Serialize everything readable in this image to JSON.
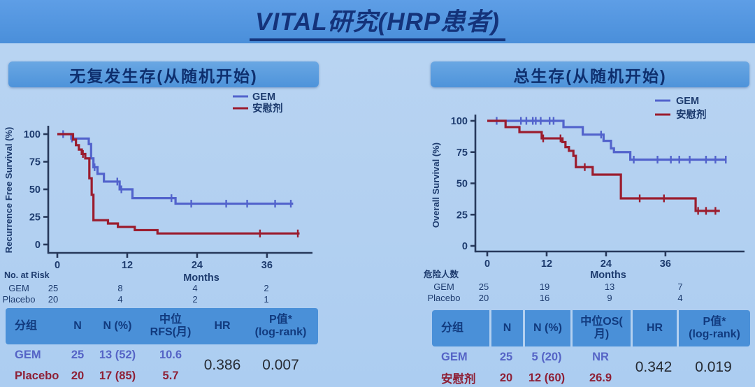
{
  "page": {
    "title": "VITAL研究(HRP患者)"
  },
  "left": {
    "panel_title": "无复发生存(从随机开始)",
    "risk": {
      "label": "No. at Risk",
      "months_label": "Months",
      "rows": [
        {
          "name": "GEM",
          "values": [
            "25",
            "8",
            "4",
            "2"
          ]
        },
        {
          "name": "Placebo",
          "values": [
            "20",
            "4",
            "2",
            "1"
          ]
        }
      ]
    },
    "table": {
      "headers": [
        "分组",
        "N",
        "N (%)",
        "中位\nRFS(月)",
        "HR",
        "P值*\n(log-rank)"
      ],
      "rows": [
        {
          "group": "GEM",
          "n": "25",
          "n_pct": "13 (52)",
          "median": "10.6"
        },
        {
          "group": "Placebo",
          "n": "20",
          "n_pct": "17 (85)",
          "median": "5.7"
        }
      ],
      "hr": "0.386",
      "p": "0.007"
    }
  },
  "right": {
    "panel_title": "总生存(从随机开始)",
    "risk": {
      "label": "危险人数",
      "months_label": "Months",
      "rows": [
        {
          "name": "GEM",
          "values": [
            "25",
            "19",
            "13",
            "7"
          ]
        },
        {
          "name": "Placebo",
          "values": [
            "20",
            "16",
            "9",
            "4"
          ]
        }
      ]
    },
    "table": {
      "headers": [
        "分组",
        "N",
        "N (%)",
        "中位OS(\n月)",
        "HR",
        "P值*\n(log-rank)"
      ],
      "rows": [
        {
          "group": "GEM",
          "n": "25",
          "n_pct": "5 (20)",
          "median": "NR"
        },
        {
          "group": "安慰剂",
          "n": "20",
          "n_pct": "12 (60)",
          "median": "26.9"
        }
      ],
      "hr": "0.342",
      "p": "0.019"
    }
  },
  "chart_data": [
    {
      "type": "line",
      "subtype": "kaplan-meier-step",
      "title": "无复发生存(从随机开始)",
      "xlabel": "Months",
      "ylabel": "Recurrence Free Survival (%)",
      "xticks": [
        0,
        12,
        24,
        36
      ],
      "yticks": [
        100,
        75,
        50,
        25,
        0
      ],
      "xlim": [
        0,
        44
      ],
      "ylim": [
        0,
        100
      ],
      "grid": false,
      "legend_position": "top-right",
      "series": [
        {
          "name": "GEM",
          "color": "#5263cc",
          "points": [
            [
              0,
              100
            ],
            [
              2.4,
              96
            ],
            [
              5.4,
              91
            ],
            [
              5.8,
              78
            ],
            [
              6.2,
              70
            ],
            [
              6.9,
              64
            ],
            [
              8.0,
              57
            ],
            [
              10.7,
              50
            ],
            [
              12.9,
              42
            ],
            [
              20.3,
              37
            ]
          ],
          "end": 40.5,
          "censors": [
            [
              1.0,
              100
            ],
            [
              2.5,
              96
            ],
            [
              6.4,
              70
            ],
            [
              10.3,
              57
            ],
            [
              11.0,
              50
            ],
            [
              19.6,
              42
            ],
            [
              23.0,
              37
            ],
            [
              29.0,
              37
            ],
            [
              32.6,
              37
            ],
            [
              37.4,
              37
            ],
            [
              40.1,
              37
            ]
          ]
        },
        {
          "name": "安慰剂",
          "color": "#9b1c2e",
          "points": [
            [
              0,
              100
            ],
            [
              2.7,
              95
            ],
            [
              3.2,
              90
            ],
            [
              3.7,
              86
            ],
            [
              4.2,
              82
            ],
            [
              4.8,
              78
            ],
            [
              5.5,
              60
            ],
            [
              5.9,
              45
            ],
            [
              6.2,
              22
            ],
            [
              8.7,
              19
            ],
            [
              10.4,
              16
            ],
            [
              13.3,
              13
            ],
            [
              17.2,
              10
            ]
          ],
          "end": 41.6,
          "censors": [
            [
              4.4,
              82
            ],
            [
              34.8,
              10
            ],
            [
              41.3,
              10
            ]
          ]
        }
      ]
    },
    {
      "type": "line",
      "subtype": "kaplan-meier-step",
      "title": "总生存(从随机开始)",
      "xlabel": "Months",
      "ylabel": "Overall Survival (%)",
      "xticks": [
        0,
        12,
        24,
        36
      ],
      "yticks": [
        100,
        75,
        50,
        25,
        0
      ],
      "xlim": [
        0,
        50
      ],
      "ylim": [
        0,
        100
      ],
      "grid": false,
      "legend_position": "top-right",
      "series": [
        {
          "name": "GEM",
          "color": "#5263cc",
          "points": [
            [
              0,
              100
            ],
            [
              15.4,
              95
            ],
            [
              19.3,
              89
            ],
            [
              23.5,
              84
            ],
            [
              25.0,
              78
            ],
            [
              25.6,
              75
            ],
            [
              28.9,
              69
            ]
          ],
          "end": 48.3,
          "censors": [
            [
              1.9,
              100
            ],
            [
              6.8,
              100
            ],
            [
              7.9,
              100
            ],
            [
              9.2,
              100
            ],
            [
              9.8,
              100
            ],
            [
              10.8,
              100
            ],
            [
              12.6,
              100
            ],
            [
              13.4,
              100
            ],
            [
              23.0,
              89
            ],
            [
              29.6,
              69
            ],
            [
              34.4,
              69
            ],
            [
              37.1,
              69
            ],
            [
              38.8,
              69
            ],
            [
              40.9,
              69
            ],
            [
              44.2,
              69
            ],
            [
              46.1,
              69
            ],
            [
              48.2,
              69
            ]
          ]
        },
        {
          "name": "安慰剂",
          "color": "#9b1c2e",
          "points": [
            [
              0,
              100
            ],
            [
              3.7,
              95
            ],
            [
              6.5,
              91
            ],
            [
              11.0,
              86
            ],
            [
              15.2,
              83
            ],
            [
              15.8,
              79
            ],
            [
              16.5,
              76
            ],
            [
              17.4,
              72
            ],
            [
              17.9,
              63
            ],
            [
              21.3,
              57
            ],
            [
              27.0,
              38
            ],
            [
              42.1,
              28
            ]
          ],
          "end": 47.0,
          "censors": [
            [
              11.3,
              86
            ],
            [
              14.8,
              86
            ],
            [
              19.7,
              63
            ],
            [
              30.8,
              38
            ],
            [
              35.7,
              38
            ],
            [
              42.6,
              28
            ],
            [
              44.2,
              28
            ],
            [
              46.1,
              28
            ]
          ]
        }
      ]
    }
  ]
}
